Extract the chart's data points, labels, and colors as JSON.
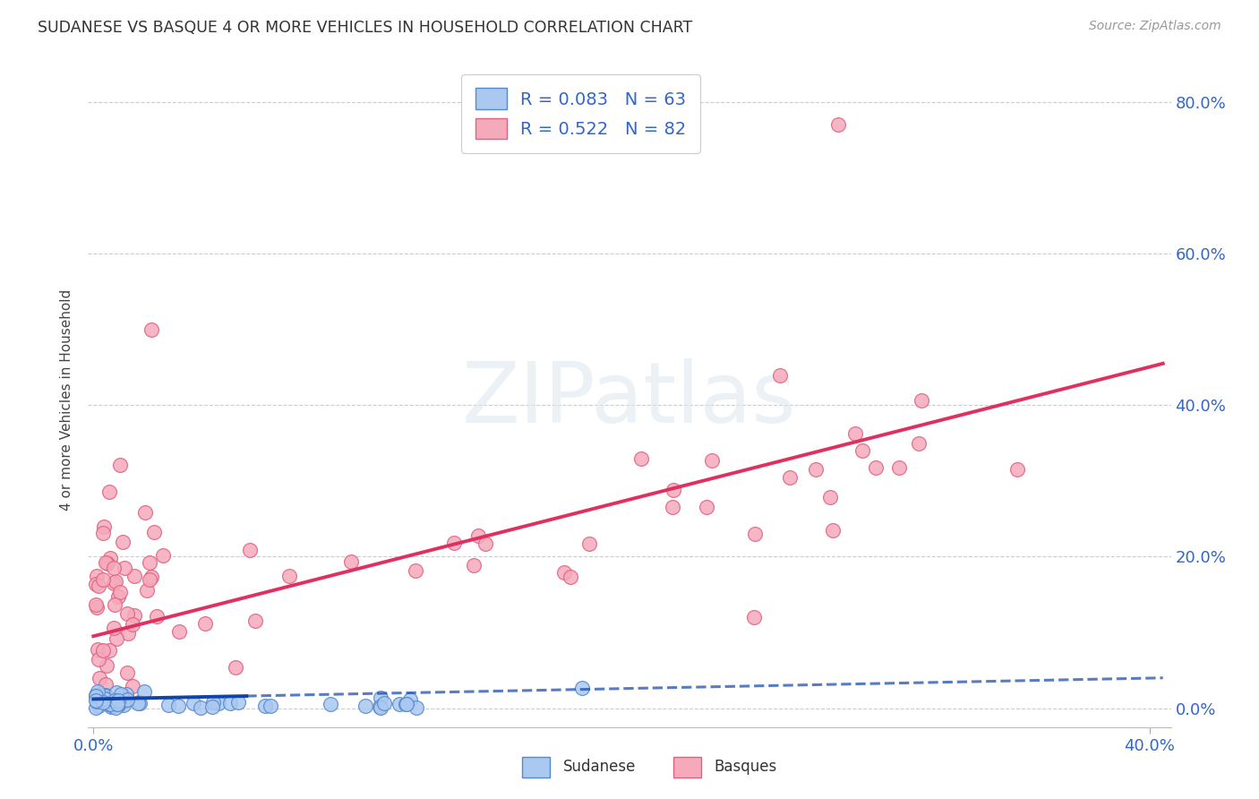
{
  "title": "SUDANESE VS BASQUE 4 OR MORE VEHICLES IN HOUSEHOLD CORRELATION CHART",
  "source": "Source: ZipAtlas.com",
  "ylabel_label": "4 or more Vehicles in Household",
  "legend_label1": "Sudanese",
  "legend_label2": "Basques",
  "R1": 0.083,
  "N1": 63,
  "R2": 0.522,
  "N2": 82,
  "color_sudanese_fill": "#aac8f0",
  "color_sudanese_edge": "#5588cc",
  "color_basque_fill": "#f5aabb",
  "color_basque_edge": "#e06080",
  "color_sudanese_line": "#1144aa",
  "color_basque_line": "#e03060",
  "color_tick": "#3366cc",
  "color_grid": "#cccccc",
  "color_title": "#333333",
  "color_source": "#999999",
  "watermark": "ZIPatlas",
  "xlim": [
    -0.002,
    0.408
  ],
  "ylim": [
    -0.025,
    0.84
  ],
  "xtick_pos": [
    0.0,
    0.4
  ],
  "xtick_labels": [
    "0.0%",
    "40.0%"
  ],
  "ytick_pos": [
    0.0,
    0.2,
    0.4,
    0.6,
    0.8
  ],
  "ytick_labels": [
    "0.0%",
    "20.0%",
    "40.0%",
    "60.0%",
    "80.0%"
  ],
  "legend_R1_text": "R = 0.083",
  "legend_N1_text": "N = 63",
  "legend_R2_text": "R = 0.522",
  "legend_N2_text": "N = 82"
}
